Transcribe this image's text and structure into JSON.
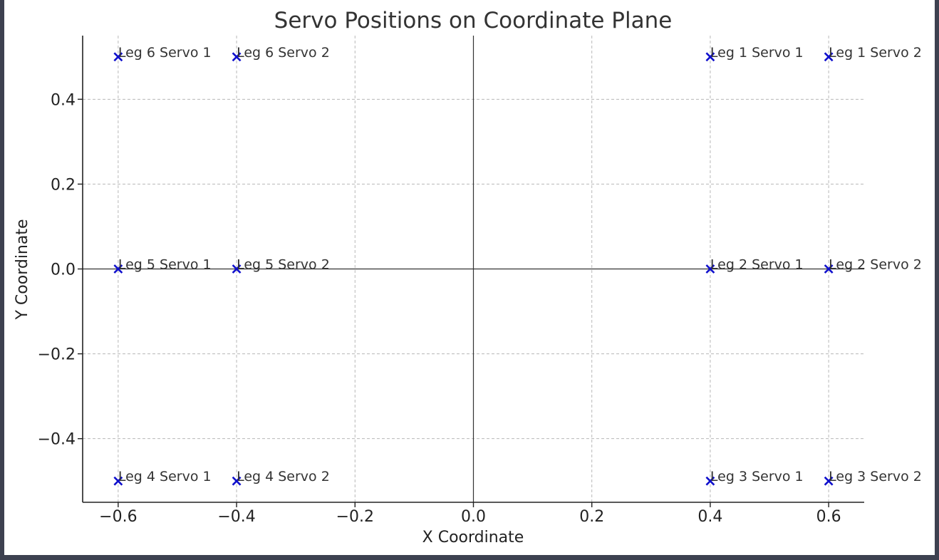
{
  "chart_data": {
    "type": "scatter",
    "title": "Servo Positions on Coordinate Plane",
    "xlabel": "X Coordinate",
    "ylabel": "Y Coordinate",
    "xlim": [
      -0.66,
      0.66
    ],
    "ylim": [
      -0.55,
      0.55
    ],
    "xticks": [
      -0.6,
      -0.4,
      -0.2,
      0.0,
      0.2,
      0.4,
      0.6
    ],
    "xtick_labels": [
      "−0.6",
      "−0.4",
      "−0.2",
      "0.0",
      "0.2",
      "0.4",
      "0.6"
    ],
    "yticks": [
      -0.4,
      -0.2,
      0.0,
      0.2,
      0.4
    ],
    "ytick_labels": [
      "−0.4",
      "−0.2",
      "0.0",
      "0.2",
      "0.4"
    ],
    "grid": true,
    "marker": "x",
    "marker_color": "#1010cc",
    "points": [
      {
        "label": "Leg 1 Servo 1",
        "x": 0.4,
        "y": 0.5
      },
      {
        "label": "Leg 1 Servo 2",
        "x": 0.6,
        "y": 0.5
      },
      {
        "label": "Leg 2 Servo 1",
        "x": 0.4,
        "y": 0.0
      },
      {
        "label": "Leg 2 Servo 2",
        "x": 0.6,
        "y": 0.0
      },
      {
        "label": "Leg 3 Servo 1",
        "x": 0.4,
        "y": -0.5
      },
      {
        "label": "Leg 3 Servo 2",
        "x": 0.6,
        "y": -0.5
      },
      {
        "label": "Leg 4 Servo 1",
        "x": -0.6,
        "y": -0.5
      },
      {
        "label": "Leg 4 Servo 2",
        "x": -0.4,
        "y": -0.5
      },
      {
        "label": "Leg 5 Servo 1",
        "x": -0.6,
        "y": 0.0
      },
      {
        "label": "Leg 5 Servo 2",
        "x": -0.4,
        "y": 0.0
      },
      {
        "label": "Leg 6 Servo 1",
        "x": -0.6,
        "y": 0.5
      },
      {
        "label": "Leg 6 Servo 2",
        "x": -0.4,
        "y": 0.5
      }
    ]
  }
}
